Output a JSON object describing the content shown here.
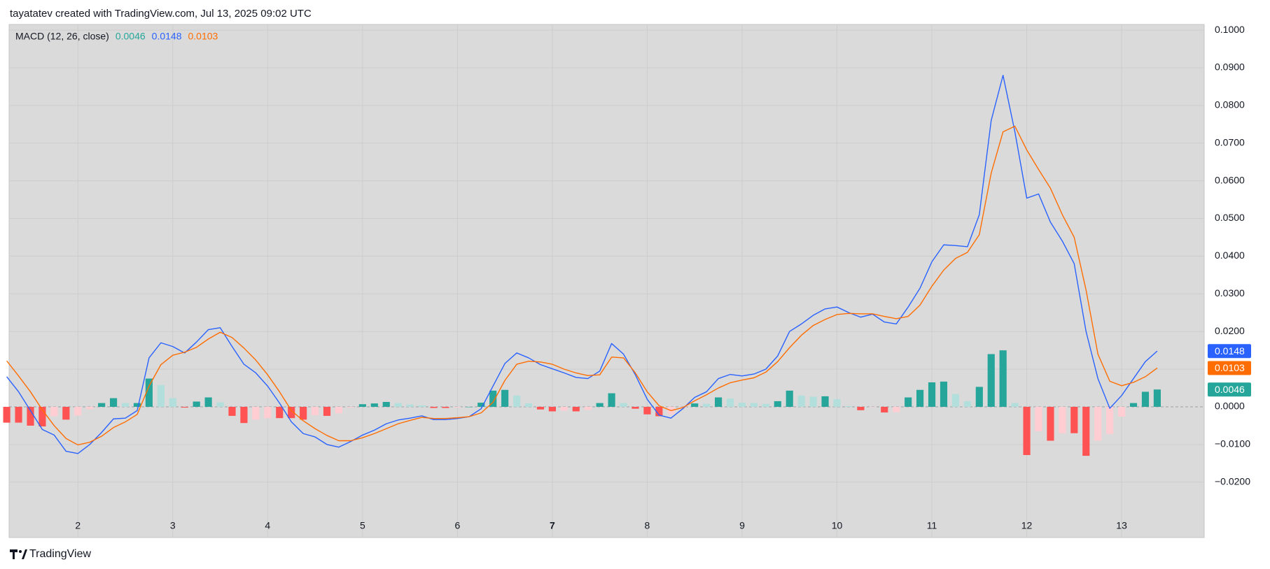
{
  "header": "tayatatev created with TradingView.com, Jul 13, 2025 09:02 UTC",
  "footer": "TradingView",
  "chart_data": {
    "type": "line",
    "title": "MACD (12, 26, close)",
    "x": [
      1.25,
      1.375,
      1.5,
      1.625,
      1.75,
      1.875,
      2,
      2.125,
      2.25,
      2.375,
      2.5,
      2.625,
      2.75,
      2.875,
      3,
      3.125,
      3.25,
      3.375,
      3.5,
      3.625,
      3.75,
      3.875,
      4,
      4.125,
      4.25,
      4.375,
      4.5,
      4.625,
      4.75,
      4.875,
      5,
      5.125,
      5.25,
      5.375,
      5.5,
      5.625,
      5.75,
      5.875,
      6,
      6.125,
      6.25,
      6.375,
      6.5,
      6.625,
      6.75,
      6.875,
      7,
      7.125,
      7.25,
      7.375,
      7.5,
      7.625,
      7.75,
      7.875,
      8,
      8.125,
      8.25,
      8.375,
      8.5,
      8.625,
      8.75,
      8.875,
      9,
      9.125,
      9.25,
      9.375,
      9.5,
      9.625,
      9.75,
      9.875,
      10,
      10.125,
      10.25,
      10.375,
      10.5,
      10.625,
      10.75,
      10.875,
      11,
      11.125,
      11.25,
      11.375,
      11.5,
      11.625,
      11.75,
      11.875,
      12,
      12.125,
      12.25,
      12.375,
      12.5,
      12.625,
      12.75,
      12.875,
      13,
      13.125,
      13.25,
      13.375
    ],
    "series": [
      {
        "type": "bar",
        "colors": [
          "#26a69a",
          "#b2dfdb",
          "#ff5252",
          "#ffcdd2"
        ],
        "values": [
          -0.0042,
          -0.0042,
          -0.005,
          -0.0052,
          -0.0025,
          -0.0034,
          -0.0023,
          -0.0006,
          0.001,
          0.0023,
          0.001,
          0.001,
          0.0075,
          0.0058,
          0.0023,
          -0.0002,
          0.0014,
          0.0025,
          0.0012,
          -0.0024,
          -0.0043,
          -0.0034,
          -0.003,
          -0.003,
          -0.003,
          -0.0034,
          -0.0022,
          -0.0024,
          -0.0017,
          -0.0002,
          0.0007,
          0.0009,
          0.0013,
          0.001,
          0.0006,
          0.0004,
          -0.0003,
          -0.0003,
          -0.0002,
          0,
          0.0011,
          0.0043,
          0.0045,
          0.003,
          0.0009,
          -0.0007,
          -0.0012,
          -0.001,
          -0.0012,
          -0.0008,
          0.001,
          0.0036,
          0.001,
          -0.0005,
          -0.002,
          -0.0025,
          -0.002,
          -0.0003,
          0.0009,
          0.0008,
          0.0025,
          0.0022,
          0.0011,
          0.001,
          0.0008,
          0.0015,
          0.0043,
          0.003,
          0.0027,
          0.0028,
          0.002,
          0.0002,
          -0.0009,
          -0.0001,
          -0.0015,
          -0.0014,
          0.0025,
          0.0045,
          0.0065,
          0.0067,
          0.0034,
          0.0015,
          0.0053,
          0.014,
          0.015,
          0.001,
          -0.0128,
          -0.0065,
          -0.009,
          -0.007,
          -0.007,
          -0.013,
          -0.009,
          -0.0072,
          -0.0026,
          0.001,
          0.004,
          0.0046
        ]
      },
      {
        "type": "line",
        "color": "#2962ff",
        "values": [
          0.008,
          0.004,
          -0.001,
          -0.006,
          -0.0075,
          -0.0118,
          -0.0124,
          -0.01,
          -0.0068,
          -0.0032,
          -0.003,
          -0.001,
          0.013,
          0.017,
          0.016,
          0.0143,
          0.0172,
          0.0205,
          0.021,
          0.016,
          0.0113,
          0.009,
          0.0055,
          0.001,
          -0.004,
          -0.0071,
          -0.008,
          -0.01,
          -0.0107,
          -0.0092,
          -0.0075,
          -0.0062,
          -0.0045,
          -0.0035,
          -0.003,
          -0.0024,
          -0.0034,
          -0.0034,
          -0.0031,
          -0.0026,
          -0.0005,
          0.0055,
          0.0115,
          0.0143,
          0.013,
          0.0112,
          0.0101,
          0.009,
          0.0078,
          0.0075,
          0.0095,
          0.0168,
          0.014,
          0.0085,
          0.002,
          -0.0022,
          -0.003,
          -0.0005,
          0.0025,
          0.004,
          0.0075,
          0.0086,
          0.0082,
          0.0087,
          0.01,
          0.0135,
          0.02,
          0.022,
          0.0243,
          0.026,
          0.0265,
          0.025,
          0.0238,
          0.0246,
          0.0225,
          0.022,
          0.0265,
          0.0315,
          0.0385,
          0.043,
          0.0428,
          0.0425,
          0.051,
          0.076,
          0.088,
          0.073,
          0.0554,
          0.0565,
          0.049,
          0.044,
          0.038,
          0.02,
          0.0075,
          -0.0004,
          0.003,
          0.0075,
          0.012,
          0.0148
        ]
      },
      {
        "type": "line",
        "color": "#ff6d00",
        "values": [
          0.0122,
          0.0082,
          0.004,
          -0.0008,
          -0.005,
          -0.0084,
          -0.0101,
          -0.0094,
          -0.0078,
          -0.0055,
          -0.004,
          -0.002,
          0.0055,
          0.0112,
          0.0137,
          0.0145,
          0.0158,
          0.018,
          0.0198,
          0.0184,
          0.0156,
          0.0124,
          0.0085,
          0.004,
          -0.001,
          -0.0037,
          -0.0058,
          -0.0076,
          -0.009,
          -0.009,
          -0.0082,
          -0.0071,
          -0.0058,
          -0.0045,
          -0.0036,
          -0.0028,
          -0.0031,
          -0.0031,
          -0.0029,
          -0.0026,
          -0.0016,
          0.0012,
          0.007,
          0.0113,
          0.0121,
          0.0119,
          0.0113,
          0.01,
          0.009,
          0.0083,
          0.0085,
          0.0132,
          0.013,
          0.009,
          0.004,
          0.0003,
          -0.001,
          -0.0002,
          0.0016,
          0.0032,
          0.005,
          0.0064,
          0.0071,
          0.0077,
          0.0092,
          0.012,
          0.0157,
          0.019,
          0.0216,
          0.0232,
          0.0245,
          0.0248,
          0.0247,
          0.0247,
          0.024,
          0.0234,
          0.024,
          0.027,
          0.032,
          0.0363,
          0.0394,
          0.041,
          0.0457,
          0.062,
          0.073,
          0.0745,
          0.0682,
          0.063,
          0.058,
          0.051,
          0.045,
          0.031,
          0.014,
          0.0068,
          0.0056,
          0.0065,
          0.008,
          0.0103
        ]
      }
    ],
    "xlim": [
      1.275,
      13.87
    ],
    "xticks": [
      2,
      3,
      4,
      5,
      6,
      7,
      8,
      9,
      10,
      11,
      12,
      13
    ],
    "ylim": [
      -0.0347,
      0.1015
    ],
    "yticks": [
      {
        "value": 0.1,
        "label": "0.1000"
      },
      {
        "value": 0.09,
        "label": "0.0900"
      },
      {
        "value": 0.08,
        "label": "0.0800"
      },
      {
        "value": 0.07,
        "label": "0.0700"
      },
      {
        "value": 0.06,
        "label": "0.0600"
      },
      {
        "value": 0.05,
        "label": "0.0500"
      },
      {
        "value": 0.04,
        "label": "0.0400"
      },
      {
        "value": 0.03,
        "label": "0.0300"
      },
      {
        "value": 0.02,
        "label": "0.0200"
      },
      {
        "value": 0.01,
        "label": "0.0100"
      },
      {
        "value": 0,
        "label": "0.0000"
      },
      {
        "value": -0.01,
        "label": "−0.0100"
      },
      {
        "value": -0.02,
        "label": "−0.0200"
      }
    ],
    "grid": true
  }
}
